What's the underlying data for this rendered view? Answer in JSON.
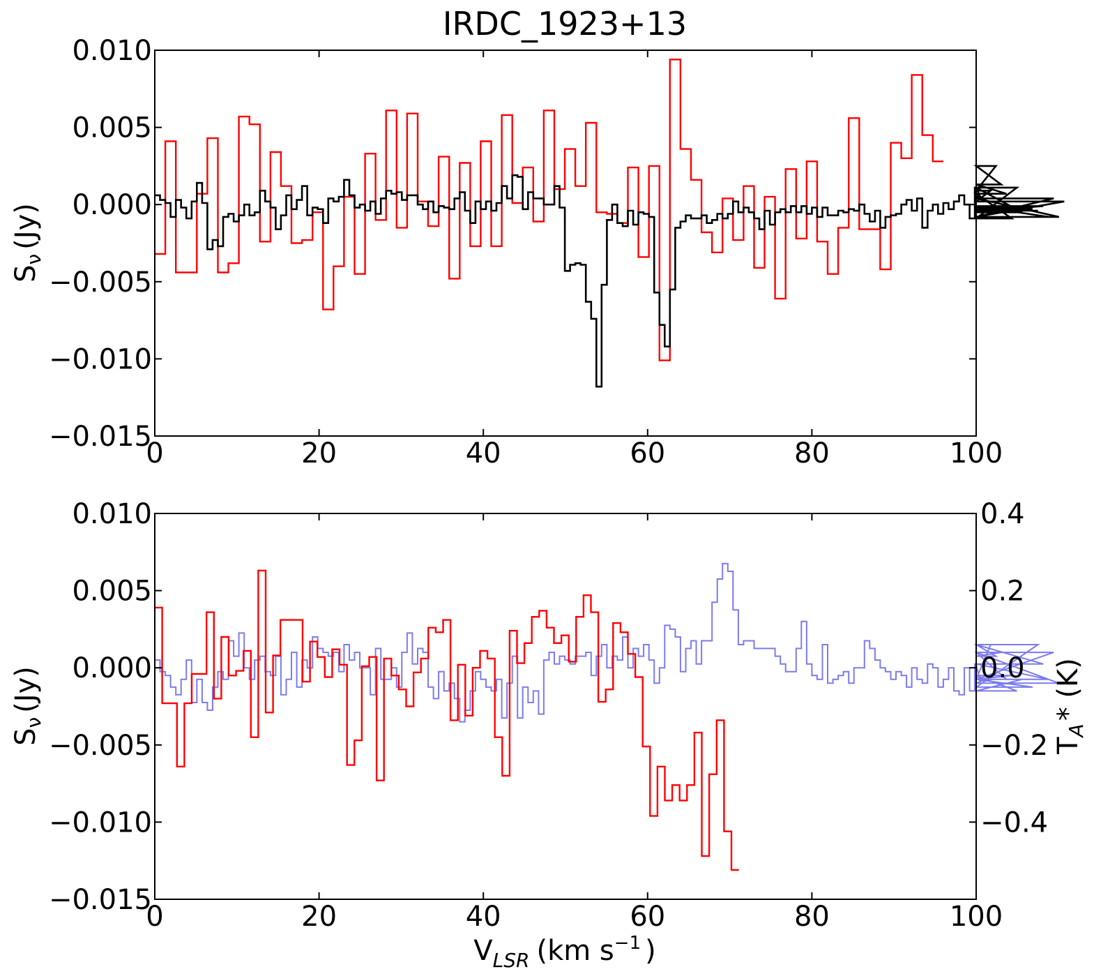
{
  "chart_data": [
    {
      "type": "line",
      "step": true,
      "title": "IRDC_1923+13",
      "xlabel": "",
      "ylabel": "S_ν (Jy)",
      "ylabel_main": "S",
      "ylabel_sub": "ν",
      "ylabel_unit": "(Jy)",
      "xlim": [
        0,
        100
      ],
      "ylim": [
        -0.015,
        0.01
      ],
      "xticks": [
        0,
        20,
        40,
        60,
        80,
        100
      ],
      "yticks": [
        -0.015,
        -0.01,
        -0.005,
        0.0,
        0.005,
        0.01
      ],
      "xtick_labels": [
        "0",
        "20",
        "40",
        "60",
        "80",
        "100"
      ],
      "ytick_labels": [
        "−0.015",
        "−0.010",
        "−0.005",
        "0.000",
        "0.005",
        "0.010"
      ],
      "series": [
        {
          "name": "red",
          "color": "#ff0000",
          "x0": 0,
          "step": 1.28,
          "values": [
            -0.0032,
            0.0041,
            -0.0044,
            -0.0044,
            0.0007,
            0.0043,
            -0.0044,
            -0.0038,
            0.0057,
            0.0052,
            -0.0024,
            0.0034,
            0.0012,
            -0.0025,
            -0.0023,
            -0.0005,
            -0.0068,
            -0.004,
            0.0005,
            -0.0045,
            0.0033,
            -0.001,
            0.0061,
            -0.0015,
            0.0059,
            0.0002,
            -0.0014,
            0.0031,
            -0.0048,
            0.0027,
            -0.0027,
            0.0041,
            -0.0027,
            0.0058,
            0.0001,
            0.0024,
            -0.0011,
            0.0061,
            0.001,
            0.0036,
            0.0012,
            0.0053,
            -0.0005,
            -0.0006,
            -0.0012,
            0.0024,
            -0.0034,
            0.0025,
            -0.0101,
            0.0094,
            0.0036,
            0.0016,
            -0.0018,
            -0.0031,
            0.0004,
            -0.0023,
            0.0012,
            -0.0041,
            0.0005,
            -0.0061,
            0.0023,
            -0.0022,
            0.0028,
            -0.0024,
            -0.0045,
            -0.0015,
            0.0056,
            -0.0016,
            -0.0016,
            -0.0042,
            0.004,
            0.003,
            0.0084,
            0.0045,
            0.0028
          ]
        },
        {
          "name": "black",
          "color": "#000000",
          "x0": 0,
          "step": 0.64,
          "values": [
            0.0006,
            0.0003,
            0.0001,
            -0.0008,
            0.0003,
            -0.0002,
            -0.0009,
            0.0002,
            0.0014,
            0.0001,
            -0.0029,
            -0.0023,
            -0.0027,
            -0.0008,
            -0.0006,
            -0.0011,
            -0.0007,
            0.0,
            -0.0007,
            -0.0005,
            0.0009,
            0.0002,
            -0.0002,
            -0.0016,
            -0.0007,
            0.0006,
            -0.0003,
            0.0003,
            0.0012,
            -0.0007,
            -0.0002,
            -0.0003,
            -0.0012,
            0.0004,
            0.0002,
            0.0005,
            0.0016,
            0.0006,
            -0.0002,
            0.0,
            -0.0004,
            0.0002,
            -0.0006,
            0.0004,
            0.0009,
            0.0007,
            0.0008,
            0.0003,
            0.0006,
            0.0006,
            0.0,
            -0.0003,
            0.0002,
            -0.0005,
            -0.0001,
            -0.0002,
            -0.0003,
            0.0004,
            0.0008,
            -0.0004,
            -0.0012,
            0.0002,
            -0.0003,
            0.0002,
            -0.0004,
            0.0001,
            0.0012,
            0.0004,
            0.0019,
            0.0018,
            -0.0003,
            0.0008,
            0.0004,
            0.0004,
            0.0,
            0.0,
            0.0012,
            -0.0002,
            -0.0043,
            -0.0039,
            -0.0038,
            -0.0039,
            -0.0063,
            -0.0074,
            -0.0118,
            -0.0052,
            -0.001,
            0.0,
            -0.0012,
            -0.0014,
            -0.0004,
            -0.0013,
            -0.0005,
            -0.0006,
            -0.0008,
            -0.0057,
            -0.0078,
            -0.0092,
            -0.0055,
            -0.0015,
            -0.0011,
            -0.0007,
            -0.0009,
            -0.0009,
            -0.0007,
            -0.0012,
            -0.001,
            -0.0006,
            -0.0009,
            -0.0006,
            0.0002,
            -0.0005,
            -0.0002,
            -0.0005,
            -0.0009,
            -0.0016,
            -0.0004,
            -0.0013,
            -0.0005,
            -0.0003,
            -0.0005,
            -0.0001,
            -0.0005,
            -0.0001,
            -0.0006,
            -0.0002,
            -0.0008,
            -0.0002,
            -0.0007,
            -0.0007,
            -0.0004,
            -0.0005,
            -0.0003,
            -0.0004,
            0.0,
            -0.0006,
            -0.0011,
            -0.0004,
            -0.0015,
            -0.0008,
            -0.0007,
            -0.0006,
            0.0,
            0.0003,
            -0.0004,
            0.0004,
            -0.0015,
            -0.0004,
            0.0,
            -0.0006,
            0.0001,
            -0.0003,
            0.0002,
            0.0006,
            0.0,
            -0.0009,
            0.0011,
            0.0005,
            0.0002,
            0.0009,
            0.0025,
            0.0013,
            0.0007,
            -0.0009,
            0.0011,
            -0.0005,
            -0.0002,
            -0.0003,
            -0.0004,
            -0.0001,
            -0.0008,
            0.0004,
            -0.0008,
            0.0002
          ]
        }
      ]
    },
    {
      "type": "line",
      "step": true,
      "title": "",
      "xlabel": "V_LSR (km s⁻¹)",
      "xlabel_main": "V",
      "xlabel_sub": "LSR",
      "xlabel_unit": "(km s",
      "xlabel_sup": "−1",
      "xlabel_close": ")",
      "ylabel": "S_ν (Jy)",
      "ylabel_main": "S",
      "ylabel_sub": "ν",
      "ylabel_unit": "(Jy)",
      "y2label": "T_A* (K)",
      "y2label_main": "T",
      "y2label_sub": "A",
      "y2label_unit": "* (K)",
      "xlim": [
        0,
        100
      ],
      "ylim": [
        -0.015,
        0.01
      ],
      "y2lim": [
        -0.6,
        0.4
      ],
      "xticks": [
        0,
        20,
        40,
        60,
        80,
        100
      ],
      "yticks": [
        -0.015,
        -0.01,
        -0.005,
        0.0,
        0.005,
        0.01
      ],
      "y2ticks": [
        -0.4,
        -0.2,
        0.0,
        0.2,
        0.4
      ],
      "xtick_labels": [
        "0",
        "20",
        "40",
        "60",
        "80",
        "100"
      ],
      "ytick_labels": [
        "−0.015",
        "−0.010",
        "−0.005",
        "0.000",
        "0.005",
        "0.010"
      ],
      "y2tick_labels": [
        "−0.4",
        "−0.2",
        "0.0",
        "0.2",
        "0.4"
      ],
      "series": [
        {
          "name": "blue (T_A*)",
          "axis": "right",
          "color": "#7b7bf0",
          "x0": 0,
          "step": 0.64,
          "values": [
            0.02,
            -0.01,
            -0.02,
            -0.05,
            -0.07,
            -0.03,
            0.02,
            -0.09,
            -0.03,
            -0.09,
            -0.11,
            -0.05,
            -0.01,
            -0.03,
            0.07,
            0.03,
            0.09,
            0.0,
            -0.03,
            0.02,
            0.03,
            -0.01,
            -0.02,
            0.03,
            -0.07,
            -0.03,
            0.04,
            -0.05,
            0.02,
            0.0,
            0.08,
            0.05,
            0.04,
            0.03,
            0.04,
            -0.01,
            0.06,
            0.02,
            0.04,
            0.0,
            0.0,
            -0.07,
            0.05,
            -0.03,
            -0.03,
            0.0,
            -0.05,
            0.04,
            0.09,
            0.01,
            0.05,
            0.04,
            -0.05,
            -0.08,
            -0.01,
            -0.06,
            -0.04,
            -0.08,
            -0.14,
            -0.11,
            -0.06,
            -0.01,
            -0.03,
            -0.05,
            -0.06,
            -0.03,
            -0.13,
            -0.04,
            0.03,
            -0.13,
            -0.05,
            -0.09,
            -0.06,
            -0.12,
            0.02,
            0.04,
            0.01,
            0.03,
            0.02,
            0.01,
            0.03,
            0.03,
            0.04,
            -0.02,
            0.03,
            0.06,
            0.0,
            0.03,
            0.02,
            0.08,
            0.0,
            0.05,
            0.03,
            0.06,
            0.02,
            -0.04,
            0.0,
            0.11,
            0.1,
            0.08,
            -0.01,
            0.05,
            0.07,
            0.01,
            0.07,
            0.07,
            0.17,
            0.23,
            0.27,
            0.25,
            0.15,
            0.06,
            0.07,
            0.07,
            0.05,
            0.05,
            0.05,
            0.05,
            0.03,
            0.01,
            -0.01,
            -0.01,
            0.05,
            0.12,
            0.01,
            -0.02,
            -0.03,
            0.06,
            -0.04,
            -0.03,
            -0.02,
            -0.01,
            -0.04,
            0.0,
            0.0,
            0.07,
            0.05,
            0.02,
            0.0,
            -0.01,
            -0.03,
            -0.01,
            -0.02,
            -0.05,
            0.0,
            -0.03,
            -0.04,
            0.01,
            0.0,
            -0.05,
            -0.03,
            0.0,
            -0.06,
            -0.07,
            0.0,
            -0.06,
            0.01,
            -0.04,
            -0.03,
            0.06,
            0.03,
            0.04,
            -0.03,
            -0.02,
            -0.06,
            -0.03,
            -0.03,
            -0.05,
            0.06,
            0.01,
            -0.03,
            0.04,
            -0.04
          ]
        },
        {
          "name": "red",
          "axis": "left",
          "color": "#ff0000",
          "x0": 0,
          "step": 0.9,
          "values": [
            0.0039,
            -0.0023,
            -0.0023,
            -0.0064,
            -0.0023,
            -0.0004,
            -0.0004,
            0.0036,
            -0.002,
            0.002,
            -0.0005,
            -0.0002,
            0.0011,
            -0.0045,
            0.0063,
            -0.0029,
            0.0008,
            0.0031,
            0.0031,
            0.0031,
            -0.0009,
            0.0017,
            0.0007,
            -0.0006,
            0.0012,
            0.0002,
            -0.0063,
            -0.0047,
            0.0001,
            0.0007,
            -0.0073,
            0.0006,
            -0.0005,
            -0.0014,
            -0.0025,
            -0.0003,
            0.0006,
            0.0026,
            0.0023,
            0.0031,
            -0.0034,
            0.0002,
            -0.0031,
            0.0,
            0.0011,
            0.0006,
            -0.0045,
            -0.007,
            0.0024,
            0.0003,
            0.0016,
            0.0033,
            0.0037,
            0.0026,
            0.0016,
            0.0021,
            0.0004,
            0.0033,
            0.0047,
            0.0036,
            -0.0022,
            -0.0014,
            0.0029,
            0.0023,
            0.0009,
            -0.0006,
            -0.0051,
            -0.0096,
            -0.0064,
            -0.0086,
            -0.0076,
            -0.0086,
            -0.0076,
            -0.0042,
            -0.0122,
            -0.0069,
            -0.0034,
            -0.0106,
            -0.0131
          ]
        }
      ]
    }
  ]
}
